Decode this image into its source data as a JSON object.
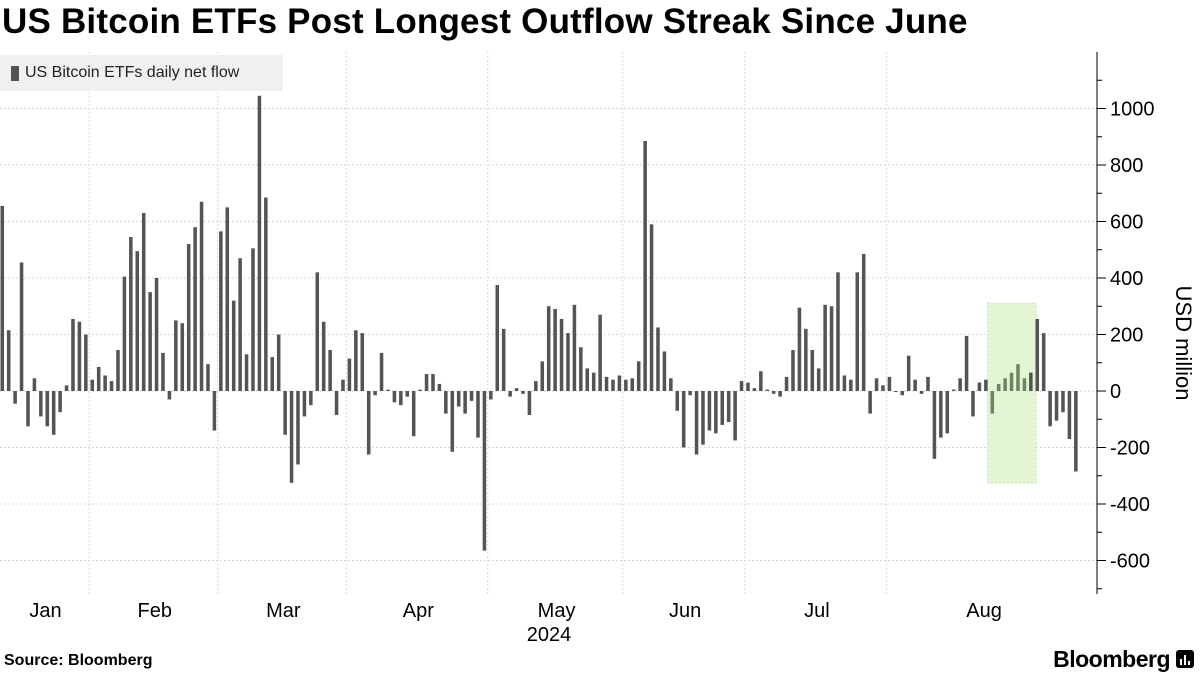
{
  "title": "US Bitcoin ETFs Post Longest Outflow Streak Since June",
  "legend": {
    "label": "US Bitcoin ETFs daily net flow"
  },
  "source": "Source: Bloomberg",
  "brand": "Bloomberg",
  "colors": {
    "bar": "#545454",
    "highlight_bar": "#6f8560",
    "highlight_fill": "#e4f5d4",
    "highlight_border": "#c2e6a3",
    "grid": "#cccccc"
  },
  "chart_data": {
    "type": "bar",
    "title": "US Bitcoin ETFs Post Longest Outflow Streak Since June",
    "xlabel": "2024",
    "ylabel": "USD million",
    "ylim": [
      -700,
      1200
    ],
    "yticks": [
      1000,
      800,
      600,
      400,
      200,
      0,
      -200,
      -400,
      -600
    ],
    "ytick_labels": [
      "1000",
      "800",
      "600",
      "400",
      "200",
      "0",
      "-200",
      "-400",
      "-600"
    ],
    "month_labels": [
      "Jan",
      "Feb",
      "Mar",
      "Apr",
      "May",
      "Jun",
      "Jul",
      "Aug"
    ],
    "year_label": "2024",
    "month_start_index": [
      0,
      14,
      34,
      54,
      76,
      97,
      116,
      138
    ],
    "highlight_range": [
      154,
      159
    ],
    "series": [
      {
        "name": "US Bitcoin ETFs daily net flow",
        "values": [
          655,
          215,
          -45,
          455,
          -125,
          45,
          -90,
          -125,
          -155,
          -75,
          20,
          255,
          245,
          200,
          40,
          85,
          55,
          35,
          145,
          405,
          545,
          495,
          630,
          350,
          400,
          135,
          -30,
          250,
          240,
          520,
          580,
          670,
          95,
          -140,
          565,
          650,
          320,
          470,
          130,
          505,
          1045,
          685,
          120,
          200,
          -155,
          -325,
          -260,
          -90,
          -50,
          420,
          245,
          145,
          -85,
          40,
          115,
          215,
          205,
          -225,
          -15,
          135,
          5,
          -40,
          -50,
          -20,
          -160,
          5,
          60,
          60,
          25,
          -80,
          -215,
          -55,
          -80,
          -35,
          -165,
          -565,
          -30,
          375,
          220,
          -20,
          10,
          -10,
          -85,
          35,
          105,
          300,
          290,
          255,
          205,
          305,
          155,
          80,
          65,
          270,
          50,
          40,
          55,
          40,
          45,
          105,
          885,
          590,
          225,
          140,
          45,
          -70,
          -200,
          -15,
          -225,
          -190,
          -140,
          -150,
          -120,
          -110,
          -175,
          35,
          30,
          10,
          70,
          5,
          -10,
          -20,
          50,
          145,
          295,
          220,
          145,
          80,
          305,
          300,
          420,
          55,
          40,
          420,
          485,
          -80,
          45,
          20,
          50,
          0,
          -15,
          125,
          40,
          -10,
          50,
          -240,
          -165,
          -150,
          5,
          45,
          195,
          -90,
          30,
          40,
          -80,
          25,
          45,
          65,
          95,
          45,
          65,
          255,
          205,
          -125,
          -105,
          -75,
          -170,
          -285
        ]
      }
    ]
  }
}
